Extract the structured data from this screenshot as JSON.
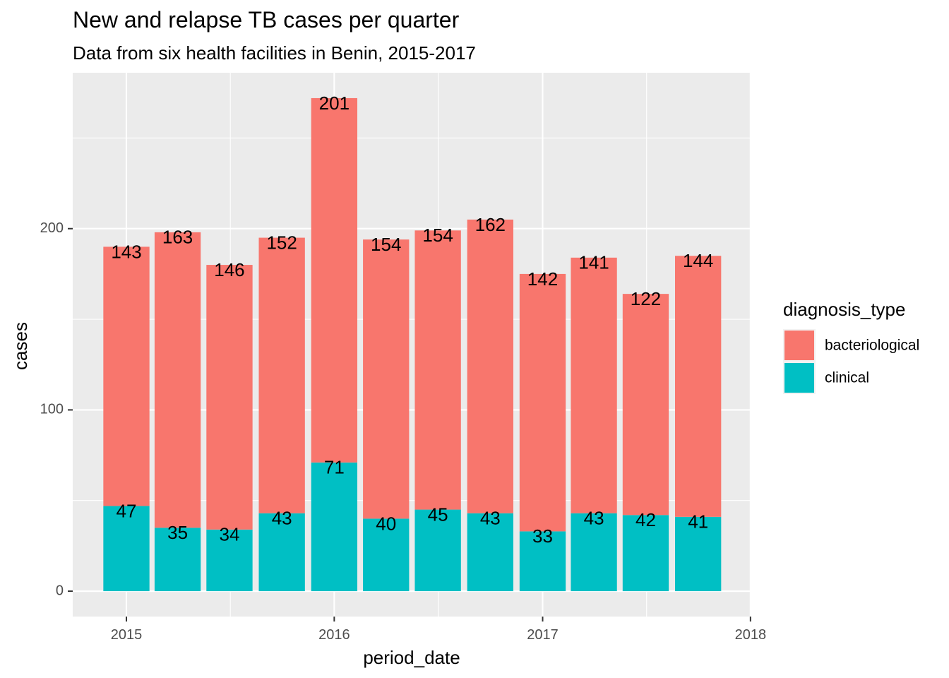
{
  "chart_data": {
    "type": "bar",
    "stacked": true,
    "title": "New and relapse TB cases per quarter",
    "subtitle": "Data from six health facilities in Benin, 2015-2017",
    "xlabel": "period_date",
    "ylabel": "cases",
    "x_ticks": [
      "2015",
      "2016",
      "2017",
      "2018"
    ],
    "y_ticks": [
      0,
      100,
      200
    ],
    "ylim": [
      -14,
      286
    ],
    "categories": [
      "2015-01-01",
      "2015-04-01",
      "2015-07-01",
      "2015-10-01",
      "2016-01-01",
      "2016-04-01",
      "2016-07-01",
      "2016-10-01",
      "2017-01-01",
      "2017-04-01",
      "2017-07-01",
      "2017-10-01"
    ],
    "series": [
      {
        "name": "clinical",
        "color": "#00BFC4",
        "values": [
          47,
          35,
          34,
          43,
          71,
          40,
          45,
          43,
          33,
          43,
          42,
          41
        ]
      },
      {
        "name": "bacteriological",
        "color": "#F8766D",
        "values": [
          143,
          163,
          146,
          152,
          201,
          154,
          154,
          162,
          142,
          141,
          122,
          144
        ]
      }
    ],
    "legend": {
      "title": "diagnosis_type",
      "position": "right",
      "entries": [
        "bacteriological",
        "clinical"
      ]
    },
    "grid": true,
    "panel_background": "#EBEBEB",
    "gridline_color": "#FFFFFF"
  }
}
